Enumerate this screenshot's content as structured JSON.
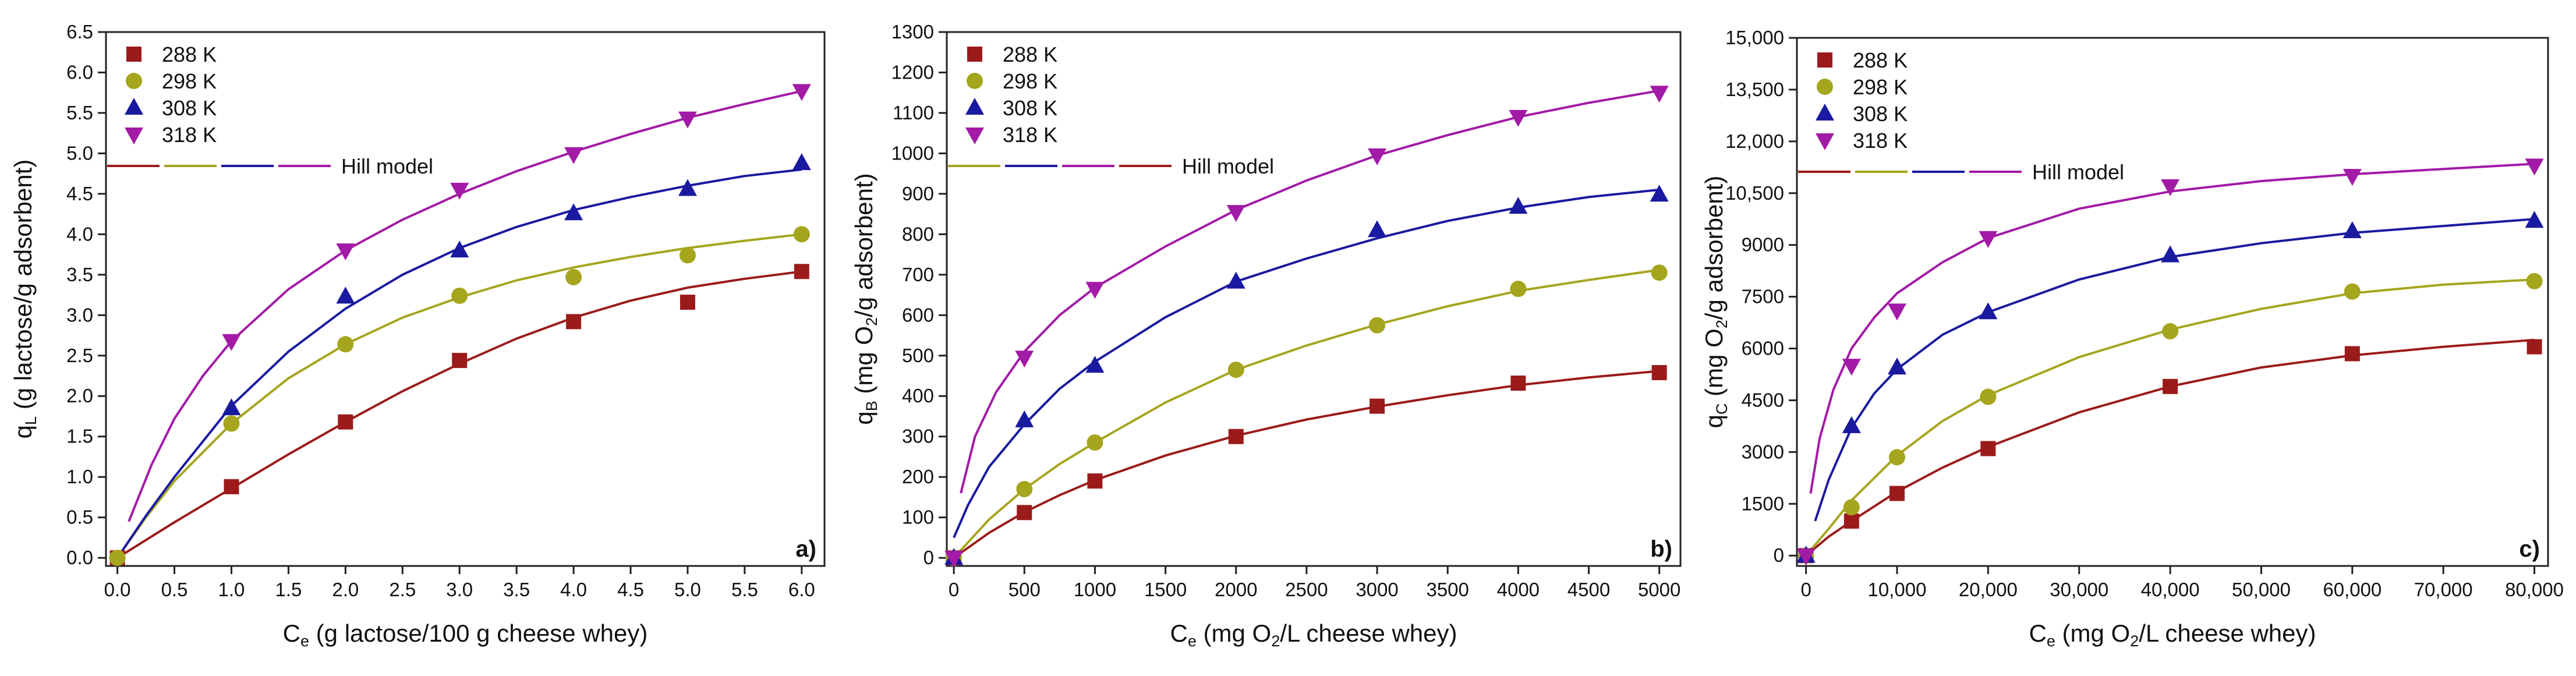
{
  "colors": {
    "288 K": "#9b1b1b",
    "298 K": "#a5a51e",
    "308 K": "#1a1aa0",
    "318 K": "#a21aa6"
  },
  "chart_data": [
    {
      "type": "scatter",
      "panel": "a)",
      "ylabel": {
        "main": "q",
        "sub": "L",
        "rest": " (g lactose/g adsorbent)"
      },
      "xlabel": {
        "main": "C",
        "sub": "e",
        "rest": " (g lactose/100 g cheese whey)"
      },
      "xlim": [
        -0.1,
        6.2
      ],
      "ylim": [
        -0.1,
        6.5
      ],
      "xticks": [
        0,
        0.5,
        1,
        1.5,
        2,
        2.5,
        3,
        3.5,
        4,
        4.5,
        5,
        5.5,
        6
      ],
      "xtick_labels": [
        "0.0",
        "0.5",
        "1.0",
        "1.5",
        "2.0",
        "2.5",
        "3.0",
        "3.5",
        "4.0",
        "4.5",
        "5.0",
        "5.5",
        "6.0"
      ],
      "yticks": [
        0,
        0.5,
        1,
        1.5,
        2,
        2.5,
        3,
        3.5,
        4,
        4.5,
        5,
        5.5,
        6,
        6.5
      ],
      "ytick_labels": [
        "0.0",
        "0.5",
        "1.0",
        "1.5",
        "2.0",
        "2.5",
        "3.0",
        "3.5",
        "4.0",
        "4.5",
        "5.0",
        "5.5",
        "6.0",
        "6.5"
      ],
      "legend_items": [
        "288 K",
        "298 K",
        "308 K",
        "318 K"
      ],
      "model_label": "Hill model",
      "series": [
        {
          "name": "288 K",
          "marker": "square",
          "x": [
            0,
            1,
            2,
            3,
            4,
            5,
            6
          ],
          "y": [
            0,
            0.88,
            1.68,
            2.44,
            2.92,
            3.16,
            3.54
          ],
          "fit": {
            "x": [
              0,
              0.5,
              1,
              1.5,
              2,
              2.5,
              3,
              3.5,
              4,
              4.5,
              5,
              5.5,
              6
            ],
            "y": [
              0,
              0.44,
              0.86,
              1.28,
              1.68,
              2.06,
              2.4,
              2.71,
              2.97,
              3.18,
              3.34,
              3.45,
              3.54
            ]
          }
        },
        {
          "name": "298 K",
          "marker": "circle",
          "x": [
            0,
            1,
            2,
            3,
            4,
            5,
            6
          ],
          "y": [
            0,
            1.66,
            2.64,
            3.24,
            3.47,
            3.74,
            4.0
          ],
          "fit": {
            "x": [
              0,
              0.25,
              0.5,
              1,
              1.5,
              2,
              2.5,
              3,
              3.5,
              4,
              4.5,
              5,
              5.5,
              6
            ],
            "y": [
              0,
              0.5,
              0.95,
              1.66,
              2.22,
              2.64,
              2.97,
              3.22,
              3.43,
              3.59,
              3.72,
              3.83,
              3.92,
              4.0
            ]
          }
        },
        {
          "name": "308 K",
          "marker": "triangle-up",
          "x": [
            1,
            2,
            3,
            4,
            5,
            6
          ],
          "y": [
            1.85,
            3.23,
            3.8,
            4.26,
            4.56,
            4.88
          ],
          "fit": {
            "x": [
              0,
              0.25,
              0.5,
              1,
              1.5,
              2,
              2.5,
              3,
              3.5,
              4,
              4.5,
              5,
              5.5,
              6
            ],
            "y": [
              0,
              0.52,
              1.0,
              1.88,
              2.55,
              3.08,
              3.5,
              3.83,
              4.09,
              4.3,
              4.46,
              4.6,
              4.72,
              4.8
            ]
          }
        },
        {
          "name": "318 K",
          "marker": "triangle-down",
          "x": [
            1,
            2,
            3,
            4,
            5,
            6
          ],
          "y": [
            2.68,
            3.8,
            4.55,
            4.99,
            5.43,
            5.77
          ],
          "fit": {
            "x": [
              0.1,
              0.3,
              0.5,
              0.75,
              1,
              1.5,
              2,
              2.5,
              3,
              3.5,
              4,
              4.5,
              5,
              5.5,
              6
            ],
            "y": [
              0.45,
              1.15,
              1.72,
              2.25,
              2.68,
              3.32,
              3.8,
              4.18,
              4.5,
              4.78,
              5.02,
              5.24,
              5.44,
              5.61,
              5.77
            ]
          }
        }
      ]
    },
    {
      "type": "scatter",
      "panel": "b)",
      "ylabel": {
        "main": "q",
        "sub": "B",
        "rest": " (mg O",
        "sub2": "2",
        "rest2": "/g adsorbent)"
      },
      "xlabel": {
        "main": "C",
        "sub": "e",
        "rest": " (mg O",
        "sub2": "2",
        "rest2": "/L cheese whey)"
      },
      "xlim": [
        -50,
        5150
      ],
      "ylim": [
        -20,
        1300
      ],
      "xticks": [
        0,
        500,
        1000,
        1500,
        2000,
        2500,
        3000,
        3500,
        4000,
        4500,
        5000
      ],
      "xtick_labels": [
        "0",
        "500",
        "1000",
        "1500",
        "2000",
        "2500",
        "3000",
        "3500",
        "4000",
        "4500",
        "5000"
      ],
      "yticks": [
        0,
        100,
        200,
        300,
        400,
        500,
        600,
        700,
        800,
        900,
        1000,
        1100,
        1200,
        1300
      ],
      "ytick_labels": [
        "0",
        "100",
        "200",
        "300",
        "400",
        "500",
        "600",
        "700",
        "800",
        "900",
        "1000",
        "1100",
        "1200",
        "1300"
      ],
      "legend_items": [
        "288 K",
        "298 K",
        "308 K",
        "318 K"
      ],
      "model_label": "Hill model",
      "series": [
        {
          "name": "288 K",
          "marker": "square",
          "x": [
            0,
            500,
            1000,
            2000,
            3000,
            4000,
            5000
          ],
          "y": [
            0,
            112,
            190,
            300,
            375,
            432,
            458
          ],
          "fit": {
            "x": [
              0,
              250,
              500,
              750,
              1000,
              1500,
              2000,
              2500,
              3000,
              3500,
              4000,
              4500,
              5000
            ],
            "y": [
              0,
              62,
              113,
              155,
              192,
              253,
              302,
              342,
              374,
              402,
              427,
              446,
              462
            ]
          }
        },
        {
          "name": "298 K",
          "marker": "circle",
          "x": [
            0,
            500,
            1000,
            2000,
            3000,
            4000,
            5000
          ],
          "y": [
            0,
            170,
            285,
            465,
            575,
            665,
            705
          ],
          "fit": {
            "x": [
              0,
              250,
              500,
              750,
              1000,
              1500,
              2000,
              2500,
              3000,
              3500,
              4000,
              4500,
              5000
            ],
            "y": [
              0,
              95,
              170,
              232,
              285,
              384,
              465,
              525,
              577,
              622,
              660,
              687,
              712
            ]
          }
        },
        {
          "name": "308 K",
          "marker": "triangle-up",
          "x": [
            0,
            500,
            1000,
            2000,
            3000,
            4000,
            5000
          ],
          "y": [
            0,
            340,
            475,
            683,
            810,
            868,
            898
          ],
          "fit": {
            "x": [
              0,
              100,
              250,
              500,
              750,
              1000,
              1500,
              2000,
              2500,
              3000,
              3500,
              4000,
              4500,
              5000
            ],
            "y": [
              50,
              130,
              225,
              330,
              418,
              485,
              595,
              683,
              740,
              790,
              833,
              866,
              892,
              910
            ]
          }
        },
        {
          "name": "318 K",
          "marker": "triangle-down",
          "x": [
            0,
            500,
            1000,
            2000,
            3000,
            4000,
            5000
          ],
          "y": [
            0,
            495,
            665,
            855,
            995,
            1090,
            1150
          ],
          "fit": {
            "x": [
              50,
              150,
              300,
              500,
              750,
              1000,
              1500,
              2000,
              2500,
              3000,
              3500,
              4000,
              4500,
              5000
            ],
            "y": [
              160,
              300,
              410,
              510,
              600,
              668,
              770,
              860,
              933,
              995,
              1045,
              1090,
              1125,
              1155
            ]
          }
        }
      ]
    },
    {
      "type": "scatter",
      "panel": "c)",
      "ylabel": {
        "main": "q",
        "sub": "C",
        "rest": " (mg O",
        "sub2": "2",
        "rest2": "/g adsorbent)"
      },
      "xlabel": {
        "main": "C",
        "sub": "e",
        "rest": " (mg O",
        "sub2": "2",
        "rest2": "/L cheese whey)"
      },
      "xlim": [
        -1000,
        81500
      ],
      "ylim": [
        -300,
        15000
      ],
      "xticks": [
        0,
        10000,
        20000,
        30000,
        40000,
        50000,
        60000,
        70000,
        80000
      ],
      "xtick_labels": [
        "0",
        "10,000",
        "20,000",
        "30,000",
        "40,000",
        "50,000",
        "60,000",
        "70,000",
        "80,000"
      ],
      "yticks": [
        0,
        1500,
        3000,
        4500,
        6000,
        7500,
        9000,
        10500,
        12000,
        13500,
        15000
      ],
      "ytick_labels": [
        "0",
        "1500",
        "3000",
        "4500",
        "6000",
        "7500",
        "9000",
        "10,500",
        "12,000",
        "13,500",
        "15,000"
      ],
      "legend_items": [
        "288 K",
        "298 K",
        "308 K",
        "318 K"
      ],
      "model_label": "Hill model",
      "series": [
        {
          "name": "288 K",
          "marker": "square",
          "x": [
            0,
            5000,
            10000,
            20000,
            40000,
            60000,
            80000
          ],
          "y": [
            0,
            1000,
            1800,
            3100,
            4900,
            5850,
            6050
          ],
          "fit": {
            "x": [
              0,
              2500,
              5000,
              10000,
              15000,
              20000,
              30000,
              40000,
              50000,
              60000,
              70000,
              80000
            ],
            "y": [
              0,
              550,
              1000,
              1850,
              2550,
              3150,
              4150,
              4900,
              5450,
              5800,
              6050,
              6250
            ]
          }
        },
        {
          "name": "298 K",
          "marker": "circle",
          "x": [
            0,
            5000,
            10000,
            20000,
            40000,
            60000,
            80000
          ],
          "y": [
            0,
            1400,
            2850,
            4600,
            6500,
            7650,
            7950
          ],
          "fit": {
            "x": [
              0,
              2500,
              5000,
              10000,
              15000,
              20000,
              30000,
              40000,
              50000,
              60000,
              70000,
              80000
            ],
            "y": [
              0,
              780,
              1600,
              2900,
              3900,
              4650,
              5750,
              6550,
              7150,
              7600,
              7850,
              8000
            ]
          }
        },
        {
          "name": "308 K",
          "marker": "triangle-up",
          "x": [
            0,
            5000,
            10000,
            20000,
            40000,
            60000,
            80000
          ],
          "y": [
            0,
            3750,
            5450,
            7050,
            8700,
            9400,
            9700
          ],
          "fit": {
            "x": [
              1000,
              2500,
              5000,
              7500,
              10000,
              15000,
              20000,
              30000,
              40000,
              50000,
              60000,
              70000,
              80000
            ],
            "y": [
              1000,
              2200,
              3700,
              4700,
              5400,
              6400,
              7050,
              8000,
              8650,
              9050,
              9350,
              9550,
              9750
            ]
          }
        },
        {
          "name": "318 K",
          "marker": "triangle-down",
          "x": [
            0,
            5000,
            10000,
            20000,
            40000,
            60000,
            80000
          ],
          "y": [
            0,
            5500,
            7100,
            9200,
            10700,
            11000,
            11300
          ],
          "fit": {
            "x": [
              500,
              1500,
              3000,
              5000,
              7500,
              10000,
              15000,
              20000,
              30000,
              40000,
              50000,
              60000,
              70000,
              80000
            ],
            "y": [
              1800,
              3400,
              4800,
              6000,
              6900,
              7600,
              8500,
              9200,
              10050,
              10550,
              10850,
              11050,
              11200,
              11350
            ]
          }
        }
      ]
    }
  ]
}
